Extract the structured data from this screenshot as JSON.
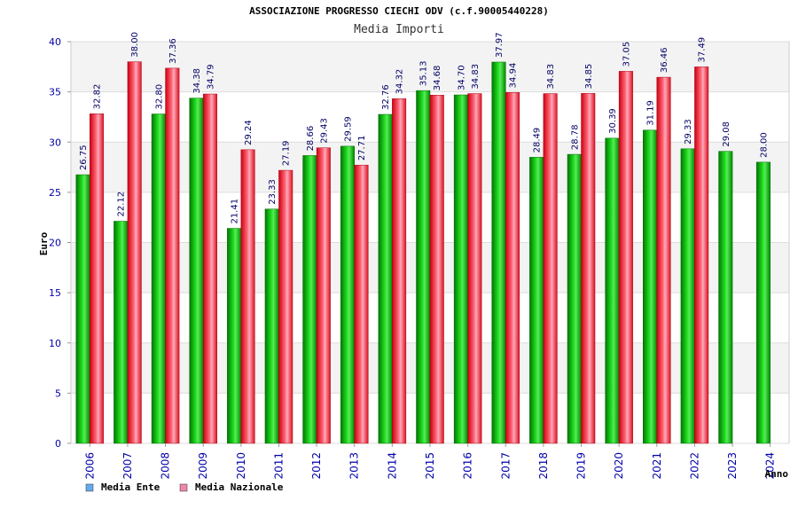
{
  "chart_data": {
    "type": "bar",
    "title": "ASSOCIAZIONE PROGRESSO CIECHI ODV (c.f.90005440228)",
    "subtitle": "Media Importi",
    "xlabel": "Anno",
    "ylabel": "Euro",
    "ylim": [
      0,
      40
    ],
    "yticks": [
      0,
      5,
      10,
      15,
      20,
      25,
      30,
      35,
      40
    ],
    "grid": true,
    "legend_position": "bottom-left",
    "categories": [
      "2006",
      "2007",
      "2008",
      "2009",
      "2010",
      "2011",
      "2012",
      "2013",
      "2014",
      "2015",
      "2016",
      "2017",
      "2018",
      "2019",
      "2020",
      "2021",
      "2022",
      "2023",
      "2024"
    ],
    "series": [
      {
        "name": "Media Ente",
        "legend_color": "#66aaee",
        "bar_color": "#11bb11",
        "values": [
          26.75,
          22.12,
          32.8,
          34.38,
          21.41,
          23.33,
          28.66,
          29.59,
          32.76,
          35.13,
          34.7,
          37.97,
          28.49,
          28.78,
          30.39,
          31.19,
          29.33,
          29.08,
          28.0
        ],
        "labels": [
          "26.75",
          "22.12",
          "32.80",
          "34.38",
          "21.41",
          "23.33",
          "28.66",
          "29.59",
          "32.76",
          "35.13",
          "34.70",
          "37.97",
          "28.49",
          "28.78",
          "30.39",
          "31.19",
          "29.33",
          "29.08",
          "28.00"
        ]
      },
      {
        "name": "Media Nazionale",
        "legend_color": "#ee88aa",
        "bar_color": "#ee2233",
        "values": [
          32.82,
          38.0,
          37.36,
          34.79,
          29.24,
          27.19,
          29.43,
          27.71,
          34.32,
          34.68,
          34.83,
          34.94,
          34.83,
          34.85,
          37.05,
          36.46,
          37.49,
          null,
          null
        ],
        "labels": [
          "32.82",
          "38.00",
          "37.36",
          "34.79",
          "29.24",
          "27.19",
          "29.43",
          "27.71",
          "34.32",
          "34.68",
          "34.83",
          "34.94",
          "34.83",
          "34.85",
          "37.05",
          "36.46",
          "37.49",
          null,
          null
        ]
      }
    ]
  }
}
